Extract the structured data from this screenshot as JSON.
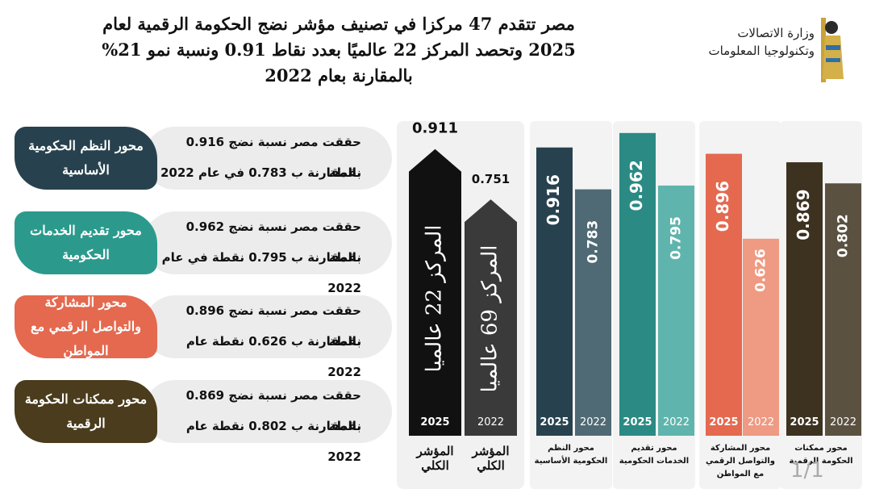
{
  "header": {
    "title_lines": [
      "مصر تتقدم 47 مركزا في تصنيف مؤشر نضج الحكومة الرقمية لعام",
      "2025 وتحصد المركز 22 عالميًا بعدد نقاط 0.91  ونسبة نمو 21%",
      "بالمقارنة بعام 2022"
    ],
    "logo_lines": [
      "وزارة الاتصالات",
      "وتكنولوجيا المعلومات"
    ]
  },
  "cards": [
    {
      "label": "محور النظم الحكومية الأساسية",
      "color": "#27424e",
      "text_lines": [
        "حققت مصر نسبة نضج 0.916 نقطة",
        "بالمقارنة ب 0.783 في عام 2022"
      ]
    },
    {
      "label": "محور تقديم الخدمات الحكومية",
      "color": "#2b9a8d",
      "text_lines": [
        "حققت مصر نسبة نضج 0.962 نقطة",
        "بالمقارنة ب 0.795 نقطة في عام 2022"
      ]
    },
    {
      "label": "محور المشاركة والتواصل الرقمي مع المواطن",
      "color": "#e4694f",
      "text_lines": [
        "حققت مصر نسبة نضج 0.896 نقطة",
        "بالمقارنة ب 0.626 نقطة عام 2022"
      ]
    },
    {
      "label": "محور ممكنات الحكومة الرقمية",
      "color": "#4a3c1c",
      "text_lines": [
        "حققت مصر نسبة نضج 0.869 نقطة",
        "بالمقارنة ب 0.802 نقطة عام 2022"
      ]
    }
  ],
  "chart_data": {
    "type": "bar",
    "categories": [
      "المؤشر الكلي",
      "محور النظم الحكومية الأساسية",
      "محور تقديم الخدمات الحكومية",
      "محور المشاركة والتواصل الرقمي مع المواطن",
      "محور ممكنات الحكومة الرقمية"
    ],
    "series": [
      {
        "name": "2025",
        "values": [
          0.911,
          0.916,
          0.962,
          0.896,
          0.869
        ],
        "colors": [
          "#111111",
          "#27424e",
          "#2b8a84",
          "#e4694f",
          "#3d3220"
        ]
      },
      {
        "name": "2022",
        "values": [
          0.751,
          0.783,
          0.795,
          0.626,
          0.802
        ],
        "colors": [
          "#3a3a3a",
          "#4f6a74",
          "#5fb5ad",
          "#ef9a82",
          "#5b5140"
        ]
      }
    ],
    "annotations": [
      "المركز 22 عالميا",
      "المركز 69 عالميا"
    ]
  },
  "page_counter": "1/1"
}
